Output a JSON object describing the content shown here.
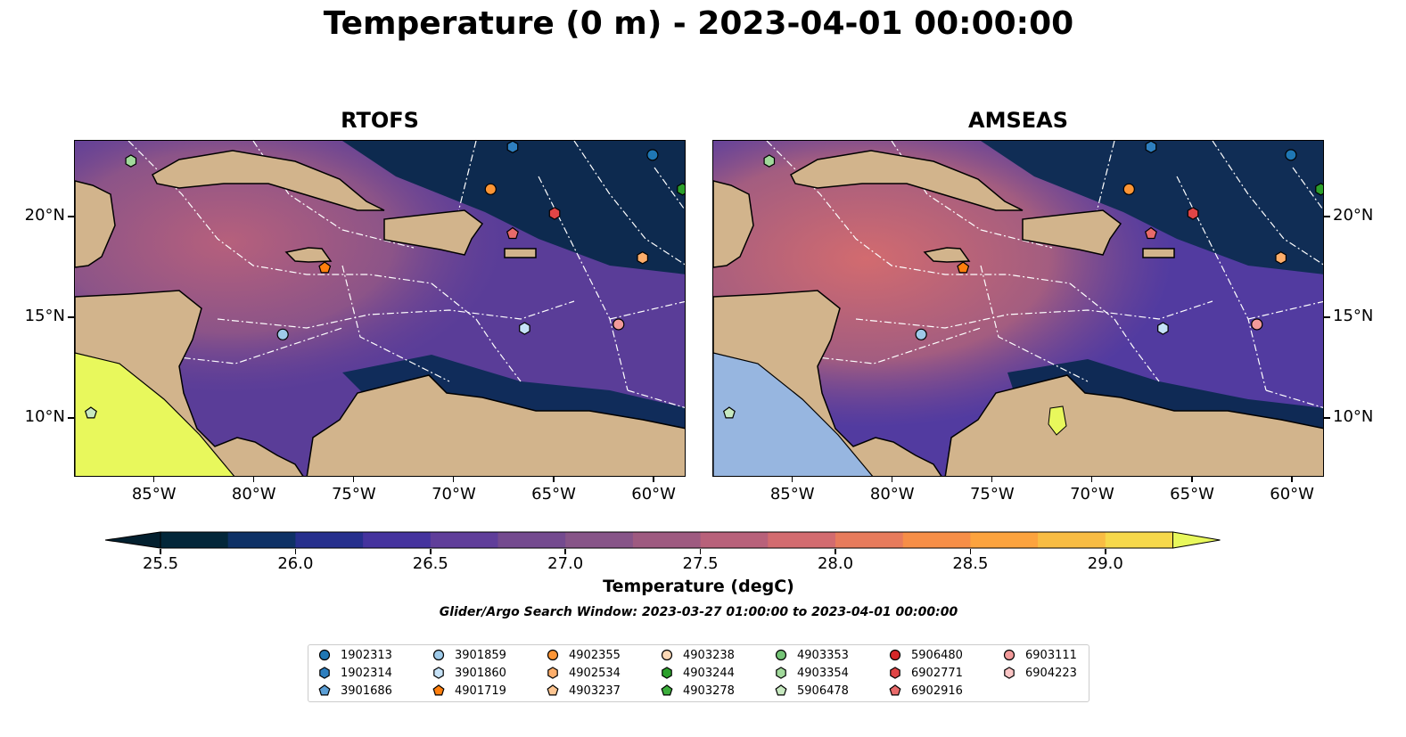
{
  "title": "Temperature (0 m) - 2023-04-01 00:00:00",
  "panels": [
    {
      "title": "RTOFS"
    },
    {
      "title": "AMSEAS"
    }
  ],
  "lon_ticks": [
    "85°W",
    "80°W",
    "75°W",
    "70°W",
    "65°W",
    "60°W"
  ],
  "lon_values": [
    -85,
    -80,
    -75,
    -70,
    -65,
    -60
  ],
  "lat_ticks": [
    "20°N",
    "15°N",
    "10°N"
  ],
  "lat_values": [
    20,
    15,
    10
  ],
  "extent": {
    "lon": [
      -89,
      -58.4
    ],
    "lat": [
      7.1,
      23.8
    ]
  },
  "colorbar": {
    "label": "Temperature (degC)",
    "min": 25.5,
    "max": 29.25,
    "step": 0.25,
    "tick_labels": [
      "25.5",
      "26.0",
      "26.5",
      "27.0",
      "27.5",
      "28.0",
      "28.5",
      "29.0"
    ],
    "tick_values": [
      25.5,
      26.0,
      26.5,
      27.0,
      27.5,
      28.0,
      28.5,
      29.0
    ],
    "colors": [
      "#03273a",
      "#0e3166",
      "#262f8d",
      "#45339e",
      "#603e9a",
      "#744a8f",
      "#875488",
      "#9e5a80",
      "#b8617a",
      "#d26b6f",
      "#e77b5c",
      "#f68e47",
      "#fca33e",
      "#f8bc43",
      "#f6d84b"
    ],
    "under_color": "#03202f",
    "over_color": "#e8f85c"
  },
  "subtitle": "Glider/Argo Search Window: 2023-03-27 01:00:00 to 2023-04-01 00:00:00",
  "legend": [
    {
      "id": "1902313",
      "marker": "circle",
      "color": "#1f77b4"
    },
    {
      "id": "1902314",
      "marker": "hexagon",
      "color": "#2e7fbf"
    },
    {
      "id": "3901686",
      "marker": "pentagon",
      "color": "#5b9fd6"
    },
    {
      "id": "3901859",
      "marker": "circle",
      "color": "#9ecae9"
    },
    {
      "id": "3901860",
      "marker": "hexagon",
      "color": "#c6e2f7"
    },
    {
      "id": "4901719",
      "marker": "pentagon",
      "color": "#ff7f0e"
    },
    {
      "id": "4902355",
      "marker": "circle",
      "color": "#fd9535"
    },
    {
      "id": "4902534",
      "marker": "hexagon",
      "color": "#fdae6b"
    },
    {
      "id": "4903237",
      "marker": "pentagon",
      "color": "#fdc591"
    },
    {
      "id": "4903238",
      "marker": "circle",
      "color": "#fdd9b6"
    },
    {
      "id": "4903244",
      "marker": "hexagon",
      "color": "#2ca02c"
    },
    {
      "id": "4903278",
      "marker": "pentagon",
      "color": "#3cae3c"
    },
    {
      "id": "4903353",
      "marker": "circle",
      "color": "#74c476"
    },
    {
      "id": "4903354",
      "marker": "hexagon",
      "color": "#a1d99b"
    },
    {
      "id": "5906478",
      "marker": "pentagon",
      "color": "#c7e9c0"
    },
    {
      "id": "5906480",
      "marker": "circle",
      "color": "#d62728"
    },
    {
      "id": "6902771",
      "marker": "hexagon",
      "color": "#e04546"
    },
    {
      "id": "6902916",
      "marker": "pentagon",
      "color": "#e86a6a"
    },
    {
      "id": "6903111",
      "marker": "circle",
      "color": "#f29a9a"
    },
    {
      "id": "6904223",
      "marker": "hexagon",
      "color": "#fbc5c5"
    }
  ],
  "floats": [
    {
      "id": "4903354",
      "lon": -86.2,
      "lat": 22.8
    },
    {
      "id": "1902314",
      "lon": -67.1,
      "lat": 23.5
    },
    {
      "id": "1902313",
      "lon": -60.1,
      "lat": 23.1
    },
    {
      "id": "4903244",
      "lon": -58.6,
      "lat": 21.4
    },
    {
      "id": "4902355",
      "lon": -68.2,
      "lat": 21.4
    },
    {
      "id": "6902771",
      "lon": -65.0,
      "lat": 20.2
    },
    {
      "id": "6902916",
      "lon": -67.1,
      "lat": 19.2
    },
    {
      "id": "4902534",
      "lon": -60.6,
      "lat": 18.0
    },
    {
      "id": "4901719",
      "lon": -76.5,
      "lat": 17.5
    },
    {
      "id": "3901859",
      "lon": -78.6,
      "lat": 14.2
    },
    {
      "id": "3901860",
      "lon": -66.5,
      "lat": 14.5
    },
    {
      "id": "6903111",
      "lon": -61.8,
      "lat": 14.7
    },
    {
      "id": "5906478",
      "lon": -88.2,
      "lat": 10.3
    }
  ]
}
